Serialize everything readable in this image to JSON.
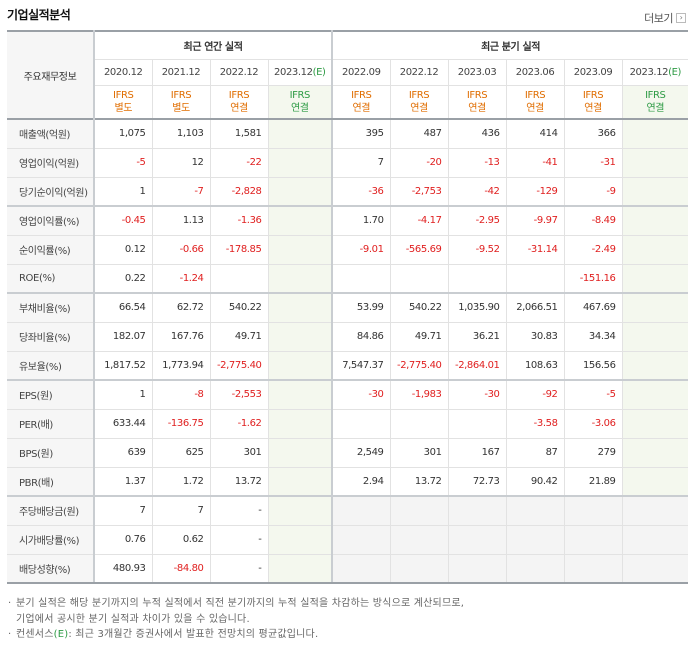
{
  "title": "기업실적분석",
  "more_label": "더보기",
  "more_icon": "chevron-right-icon",
  "row_header": "주요재무정보",
  "groups": {
    "annual": "최근 연간 실적",
    "quarterly": "최근 분기 실적"
  },
  "annual_years": [
    "2020.12",
    "2021.12",
    "2022.12",
    "2023.12"
  ],
  "annual_est_mark": "(E)",
  "quarter_periods": [
    "2022.09",
    "2022.12",
    "2023.03",
    "2023.06",
    "2023.09",
    "2023.12"
  ],
  "quarter_est_mark": "(E)",
  "annual_ifrs": [
    {
      "l1": "IFRS",
      "l2": "별도"
    },
    {
      "l1": "IFRS",
      "l2": "별도"
    },
    {
      "l1": "IFRS",
      "l2": "연결"
    },
    {
      "l1": "IFRS",
      "l2": "연결"
    }
  ],
  "quarter_ifrs": [
    {
      "l1": "IFRS",
      "l2": "연결"
    },
    {
      "l1": "IFRS",
      "l2": "연결"
    },
    {
      "l1": "IFRS",
      "l2": "연결"
    },
    {
      "l1": "IFRS",
      "l2": "연결"
    },
    {
      "l1": "IFRS",
      "l2": "연결"
    },
    {
      "l1": "IFRS",
      "l2": "연결"
    }
  ],
  "rows": [
    {
      "label": "매출액(억원)",
      "annual": [
        "1,075",
        "1,103",
        "1,581",
        ""
      ],
      "quarter": [
        "395",
        "487",
        "436",
        "414",
        "366",
        ""
      ]
    },
    {
      "label": "영업이익(억원)",
      "annual": [
        "-5",
        "12",
        "-22",
        ""
      ],
      "quarter": [
        "7",
        "-20",
        "-13",
        "-41",
        "-31",
        ""
      ]
    },
    {
      "label": "당기순이익(억원)",
      "annual": [
        "1",
        "-7",
        "-2,828",
        ""
      ],
      "quarter": [
        "-36",
        "-2,753",
        "-42",
        "-129",
        "-9",
        ""
      ]
    },
    {
      "label": "영업이익률(%)",
      "annual": [
        "-0.45",
        "1.13",
        "-1.36",
        ""
      ],
      "quarter": [
        "1.70",
        "-4.17",
        "-2.95",
        "-9.97",
        "-8.49",
        ""
      ]
    },
    {
      "label": "순이익률(%)",
      "annual": [
        "0.12",
        "-0.66",
        "-178.85",
        ""
      ],
      "quarter": [
        "-9.01",
        "-565.69",
        "-9.52",
        "-31.14",
        "-2.49",
        ""
      ]
    },
    {
      "label": "ROE(%)",
      "annual": [
        "0.22",
        "-1.24",
        "",
        ""
      ],
      "quarter": [
        "",
        "",
        "",
        "",
        "-151.16",
        ""
      ]
    },
    {
      "label": "부채비율(%)",
      "annual": [
        "66.54",
        "62.72",
        "540.22",
        ""
      ],
      "quarter": [
        "53.99",
        "540.22",
        "1,035.90",
        "2,066.51",
        "467.69",
        ""
      ]
    },
    {
      "label": "당좌비율(%)",
      "annual": [
        "182.07",
        "167.76",
        "49.71",
        ""
      ],
      "quarter": [
        "84.86",
        "49.71",
        "36.21",
        "30.83",
        "34.34",
        ""
      ]
    },
    {
      "label": "유보율(%)",
      "annual": [
        "1,817.52",
        "1,773.94",
        "-2,775.40",
        ""
      ],
      "quarter": [
        "7,547.37",
        "-2,775.40",
        "-2,864.01",
        "108.63",
        "156.56",
        ""
      ]
    },
    {
      "label": "EPS(원)",
      "annual": [
        "1",
        "-8",
        "-2,553",
        ""
      ],
      "quarter": [
        "-30",
        "-1,983",
        "-30",
        "-92",
        "-5",
        ""
      ]
    },
    {
      "label": "PER(배)",
      "annual": [
        "633.44",
        "-136.75",
        "-1.62",
        ""
      ],
      "quarter": [
        "",
        "",
        "",
        "-3.58",
        "-3.06",
        ""
      ]
    },
    {
      "label": "BPS(원)",
      "annual": [
        "639",
        "625",
        "301",
        ""
      ],
      "quarter": [
        "2,549",
        "301",
        "167",
        "87",
        "279",
        ""
      ]
    },
    {
      "label": "PBR(배)",
      "annual": [
        "1.37",
        "1.72",
        "13.72",
        ""
      ],
      "quarter": [
        "2.94",
        "13.72",
        "72.73",
        "90.42",
        "21.89",
        ""
      ]
    },
    {
      "label": "주당배당금(원)",
      "annual": [
        "7",
        "7",
        "-",
        ""
      ],
      "quarter": [
        "",
        "",
        "",
        "",
        "",
        ""
      ]
    },
    {
      "label": "시가배당률(%)",
      "annual": [
        "0.76",
        "0.62",
        "-",
        ""
      ],
      "quarter": [
        "",
        "",
        "",
        "",
        "",
        ""
      ]
    },
    {
      "label": "배당성향(%)",
      "annual": [
        "480.93",
        "-84.80",
        "-",
        ""
      ],
      "quarter": [
        "",
        "",
        "",
        "",
        "",
        ""
      ]
    }
  ],
  "notes": {
    "line1": "분기 실적은 해당 분기까지의 누적 실적에서 직전 분기까지의 누적 실적을 차감하는 방식으로 계산되므로,",
    "line2": "기업에서 공시한 분기 실적과 차이가 있을 수 있습니다.",
    "line3_pre": "컨센서스",
    "line3_mark": "(E)",
    "line3_post": ": 최근 3개월간 증권사에서 발표한 전망치의 평균값입니다."
  },
  "colors": {
    "negative": "#e02020",
    "ifrs": "#e06d00",
    "estimate": "#2e9b45",
    "estimate_bg": "#f4f8ee"
  }
}
